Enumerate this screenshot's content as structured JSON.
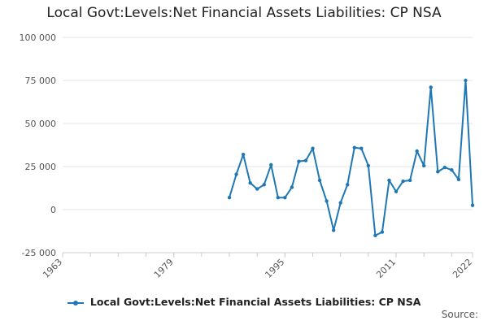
{
  "chart_data": {
    "type": "line",
    "title": "Local Govt:Levels:Net Financial Assets Liabilities: CP NSA",
    "xlabel": "",
    "ylabel": "",
    "xlim": [
      1963,
      2022
    ],
    "ylim": [
      -25000,
      100000
    ],
    "yticks": [
      -25000,
      0,
      25000,
      50000,
      75000,
      100000
    ],
    "ytick_labels": [
      "-25 000",
      "0",
      "25 000",
      "50 000",
      "75 000",
      "100 000"
    ],
    "xticks": [
      1963,
      1979,
      1995,
      2011,
      2022
    ],
    "xtick_labels": [
      "1963",
      "1979",
      "1995",
      "2011",
      "2022"
    ],
    "grid": "horizontal",
    "legend": "bottom-center",
    "series": [
      {
        "name": "Local Govt:Levels:Net Financial Assets Liabilities: CP NSA",
        "color": "#1f77b4",
        "x": [
          1987,
          1988,
          1989,
          1990,
          1991,
          1992,
          1993,
          1994,
          1995,
          1996,
          1997,
          1998,
          1999,
          2000,
          2001,
          2002,
          2003,
          2004,
          2005,
          2006,
          2007,
          2008,
          2009,
          2010,
          2011,
          2012,
          2013,
          2014,
          2015,
          2016,
          2017,
          2018,
          2019,
          2020,
          2021,
          2022
        ],
        "values": [
          7000,
          20500,
          32000,
          15500,
          12000,
          14500,
          26000,
          7000,
          7000,
          13000,
          28000,
          28500,
          35500,
          17000,
          5000,
          -12000,
          4000,
          14500,
          36000,
          35500,
          25500,
          -15000,
          -13000,
          17000,
          10500,
          16500,
          17000,
          34000,
          25500,
          71000,
          22000,
          24500,
          23000,
          17500,
          75000,
          2500
        ]
      }
    ]
  },
  "source_label": "Source:"
}
